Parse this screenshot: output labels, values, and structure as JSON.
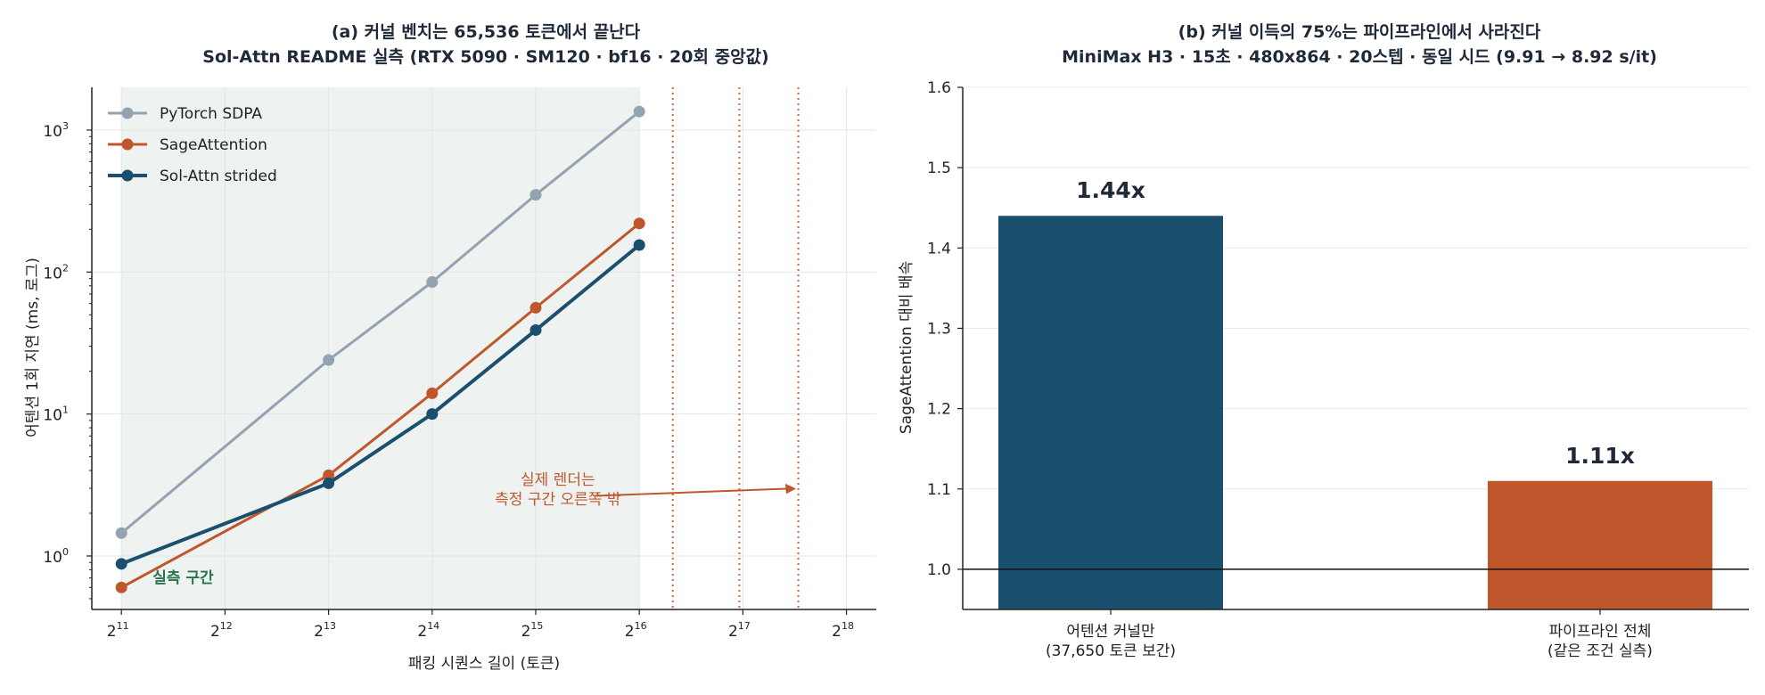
{
  "chart_data": [
    {
      "type": "line",
      "title": "(a) 커널 벤치는 65,536 토큰에서 끝난다",
      "subtitle": "Sol-Attn README 실측 (RTX 5090 · SM120 · bf16 · 20회 중앙값)",
      "xlabel": "패킹 시퀀스 길이 (토큰)",
      "ylabel": "어텐션 1회 지연 (ms, 로그)",
      "x_scale": "log2",
      "y_scale": "log10",
      "x_ticks": [
        2048,
        4096,
        8192,
        16384,
        32768,
        65536,
        131072,
        262144
      ],
      "x_tick_labels": [
        {
          "base": "2",
          "exp": "11"
        },
        {
          "base": "2",
          "exp": "12"
        },
        {
          "base": "2",
          "exp": "13"
        },
        {
          "base": "2",
          "exp": "14"
        },
        {
          "base": "2",
          "exp": "15"
        },
        {
          "base": "2",
          "exp": "16"
        },
        {
          "base": "2",
          "exp": "17"
        },
        {
          "base": "2",
          "exp": "18"
        }
      ],
      "y_ticks": [
        1,
        10,
        100,
        1000
      ],
      "y_tick_labels": [
        {
          "base": "10",
          "exp": "0"
        },
        {
          "base": "10",
          "exp": "1"
        },
        {
          "base": "10",
          "exp": "2"
        },
        {
          "base": "10",
          "exp": "3"
        }
      ],
      "xlim": [
        1680,
        320000
      ],
      "ylim": [
        0.42,
        2000
      ],
      "grid": true,
      "legend_position": "top-left",
      "series": [
        {
          "name": "PyTorch SDPA",
          "color": "#94a3b2",
          "x": [
            2048,
            8192,
            16384,
            32768,
            65536
          ],
          "y": [
            1.45,
            24,
            85,
            350,
            1350
          ]
        },
        {
          "name": "SageAttention",
          "color": "#c0572c",
          "x": [
            2048,
            8192,
            16384,
            32768,
            65536
          ],
          "y": [
            0.6,
            3.7,
            14,
            56,
            220
          ]
        },
        {
          "name": "Sol-Attn strided",
          "color": "#1b4f6e",
          "x": [
            2048,
            8192,
            16384,
            32768,
            65536
          ],
          "y": [
            0.88,
            3.25,
            10,
            39,
            155
          ]
        }
      ],
      "measured_region": {
        "x_start": 2048,
        "x_end": 65536,
        "label": "실측 구간",
        "color": "#2e7350"
      },
      "reference_lines": [
        {
          "x": 82000,
          "color": "#d4663e"
        },
        {
          "x": 128000,
          "color": "#d4663e"
        },
        {
          "x": 190000,
          "color": "#d4663e"
        }
      ],
      "annotation": {
        "lines": [
          "실제 렌더는",
          "측정 구간 오른쪽 밖"
        ],
        "color": "#c0572c",
        "text_at": {
          "x": 38000,
          "y": 2.15
        },
        "arrow_from": {
          "x": 48500,
          "y": 2.65
        },
        "arrow_to": {
          "x": 187000,
          "y": 2.98
        }
      }
    },
    {
      "type": "bar",
      "title": "(b) 커널 이득의 75%는 파이프라인에서 사라진다",
      "subtitle": "MiniMax H3 · 15초 · 480x864 · 20스텝 · 동일 시드 (9.91 → 8.92 s/it)",
      "ylabel": "SageAttention 대비 배속",
      "categories": [
        [
          "어텐션 커널만",
          "(37,650 토큰 보간)"
        ],
        [
          "파이프라인 전체",
          "(같은 조건 실측)"
        ]
      ],
      "values": [
        1.44,
        1.11
      ],
      "value_labels": [
        "1.44x",
        "1.11x"
      ],
      "colors": [
        "#1b4f6e",
        "#c0572c"
      ],
      "ylim": [
        0.95,
        1.6
      ],
      "y_ticks": [
        1.0,
        1.1,
        1.2,
        1.3,
        1.4,
        1.5,
        1.6
      ],
      "y_tick_labels": [
        "1.0",
        "1.1",
        "1.2",
        "1.3",
        "1.4",
        "1.5",
        "1.6"
      ],
      "baseline": 1.0,
      "grid": true
    }
  ]
}
